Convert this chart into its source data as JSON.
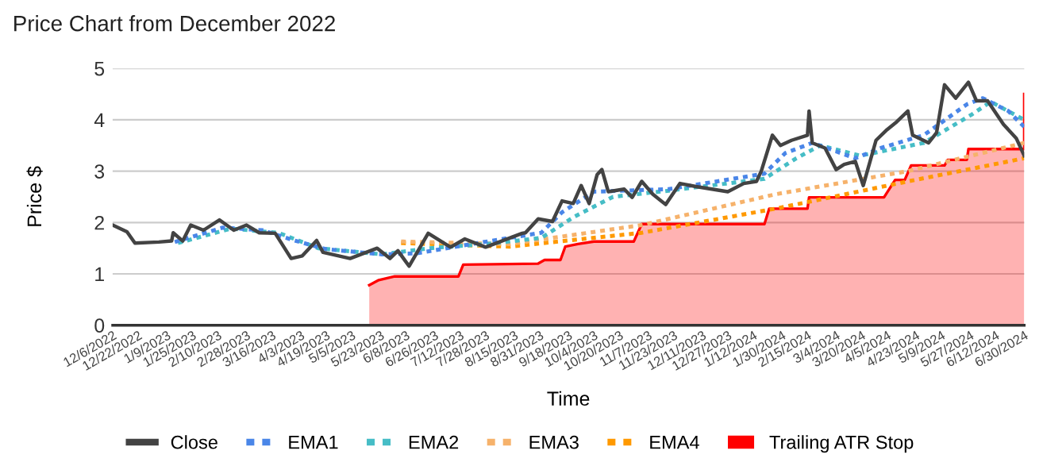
{
  "chart_data": {
    "type": "line",
    "title": "Price Chart from December 2022",
    "xlabel": "Time",
    "ylabel": "Price $",
    "xlim": [
      "2022-12-06",
      "2024-06-30"
    ],
    "ylim": [
      0,
      5
    ],
    "yticks": [
      0,
      1,
      2,
      3,
      4,
      5
    ],
    "xticks": [
      {
        "value": "2022-12-06",
        "label": "12/6/2022"
      },
      {
        "value": "2022-12-22",
        "label": "12/22/2022"
      },
      {
        "value": "2023-01-09",
        "label": "1/9/2023"
      },
      {
        "value": "2023-01-25",
        "label": "1/25/2023"
      },
      {
        "value": "2023-02-10",
        "label": "2/10/2023"
      },
      {
        "value": "2023-02-28",
        "label": "2/28/2023"
      },
      {
        "value": "2023-03-16",
        "label": "3/16/2023"
      },
      {
        "value": "2023-04-03",
        "label": "4/3/2023"
      },
      {
        "value": "2023-04-19",
        "label": "4/19/2023"
      },
      {
        "value": "2023-05-05",
        "label": "5/5/2023"
      },
      {
        "value": "2023-05-23",
        "label": "5/23/2023"
      },
      {
        "value": "2023-06-08",
        "label": "6/8/2023"
      },
      {
        "value": "2023-06-26",
        "label": "6/26/2023"
      },
      {
        "value": "2023-07-12",
        "label": "7/12/2023"
      },
      {
        "value": "2023-07-28",
        "label": "7/28/2023"
      },
      {
        "value": "2023-08-15",
        "label": "8/15/2023"
      },
      {
        "value": "2023-08-31",
        "label": "8/31/2023"
      },
      {
        "value": "2023-09-18",
        "label": "9/18/2023"
      },
      {
        "value": "2023-10-04",
        "label": "10/4/2023"
      },
      {
        "value": "2023-10-20",
        "label": "10/20/2023"
      },
      {
        "value": "2023-11-07",
        "label": "11/7/2023"
      },
      {
        "value": "2023-11-23",
        "label": "11/23/2023"
      },
      {
        "value": "2023-12-11",
        "label": "12/11/2023"
      },
      {
        "value": "2023-12-27",
        "label": "12/27/2023"
      },
      {
        "value": "2024-01-12",
        "label": "1/12/2024"
      },
      {
        "value": "2024-01-30",
        "label": "1/30/2024"
      },
      {
        "value": "2024-02-15",
        "label": "2/15/2024"
      },
      {
        "value": "2024-03-04",
        "label": "3/4/2024"
      },
      {
        "value": "2024-03-20",
        "label": "3/20/2024"
      },
      {
        "value": "2024-04-05",
        "label": "4/5/2024"
      },
      {
        "value": "2024-04-23",
        "label": "4/23/2024"
      },
      {
        "value": "2024-05-09",
        "label": "5/9/2024"
      },
      {
        "value": "2024-05-27",
        "label": "5/27/2024"
      },
      {
        "value": "2024-06-12",
        "label": "6/12/2024"
      },
      {
        "value": "2024-06-30",
        "label": "6/30/2024"
      }
    ],
    "grid": "y",
    "legend": "bottom",
    "series": [
      {
        "name": "Trailing ATR Stop",
        "type": "area",
        "color": "#ff0000",
        "x": [
          "2023-05-16",
          "2023-05-22",
          "2023-06-01",
          "2023-07-11",
          "2023-07-14",
          "2023-08-30",
          "2023-09-03",
          "2023-09-13",
          "2023-09-16",
          "2023-09-24",
          "2023-10-04",
          "2023-10-29",
          "2023-11-03",
          "2024-01-19",
          "2024-01-22",
          "2024-02-15",
          "2024-02-16",
          "2024-04-03",
          "2024-04-10",
          "2024-04-16",
          "2024-04-20",
          "2024-05-11",
          "2024-05-13",
          "2024-05-25",
          "2024-05-26",
          "2024-06-30",
          "2024-06-30"
        ],
        "values": [
          0.78,
          0.88,
          0.95,
          0.95,
          1.18,
          1.2,
          1.27,
          1.27,
          1.53,
          1.58,
          1.63,
          1.63,
          1.97,
          1.97,
          2.27,
          2.27,
          2.49,
          2.49,
          2.83,
          2.83,
          3.11,
          3.11,
          3.22,
          3.22,
          3.43,
          3.43,
          4.5
        ]
      },
      {
        "name": "EMA4",
        "line_style": "dotted",
        "color": "#ff9900",
        "x": [
          "2023-06-05",
          "2023-08-12",
          "2023-11-03",
          "2024-01-26",
          "2024-04-18",
          "2024-06-30"
        ],
        "values": [
          1.6,
          1.53,
          1.8,
          2.27,
          2.8,
          3.25
        ]
      },
      {
        "name": "EMA3",
        "line_style": "dotted",
        "color": "#f6b26b",
        "x": [
          "2023-06-05",
          "2023-08-12",
          "2023-11-03",
          "2024-01-26",
          "2024-04-18",
          "2024-06-30"
        ],
        "values": [
          1.63,
          1.58,
          1.95,
          2.55,
          3.0,
          3.55
        ]
      },
      {
        "name": "EMA2",
        "line_style": "dotted",
        "color": "#46bdc6",
        "x": [
          "2023-01-16",
          "2023-02-18",
          "2023-03-20",
          "2023-04-14",
          "2023-05-24",
          "2023-06-23",
          "2023-07-28",
          "2023-09-01",
          "2023-09-21",
          "2023-10-16",
          "2023-11-20",
          "2024-01-19",
          "2024-02-08",
          "2024-02-23",
          "2024-03-19",
          "2024-04-28",
          "2024-05-28",
          "2024-06-09",
          "2024-06-30"
        ],
        "values": [
          1.6,
          1.88,
          1.8,
          1.5,
          1.38,
          1.5,
          1.58,
          1.7,
          2.1,
          2.5,
          2.62,
          2.85,
          3.25,
          3.5,
          3.3,
          3.55,
          4.1,
          4.35,
          4.0
        ]
      },
      {
        "name": "EMA1",
        "line_style": "dotted",
        "color": "#4a86e8",
        "x": [
          "2023-01-14",
          "2023-02-13",
          "2023-03-10",
          "2023-03-30",
          "2023-04-19",
          "2023-05-24",
          "2023-06-15",
          "2023-07-23",
          "2023-09-01",
          "2023-09-14",
          "2023-10-04",
          "2023-11-20",
          "2024-01-19",
          "2024-02-01",
          "2024-02-18",
          "2024-03-16",
          "2024-04-01",
          "2024-04-28",
          "2024-05-25",
          "2024-06-04",
          "2024-06-20",
          "2024-06-30"
        ],
        "values": [
          1.62,
          1.9,
          1.85,
          1.65,
          1.48,
          1.38,
          1.4,
          1.6,
          1.8,
          2.2,
          2.6,
          2.65,
          2.95,
          3.35,
          3.55,
          3.25,
          3.45,
          3.7,
          4.3,
          4.42,
          4.17,
          3.86
        ]
      },
      {
        "name": "Close",
        "line_style": "solid",
        "color": "#434343",
        "x": [
          "2022-12-06",
          "2022-12-15",
          "2022-12-20",
          "2023-01-04",
          "2023-01-12",
          "2023-01-13",
          "2023-01-19",
          "2023-01-24",
          "2023-02-01",
          "2023-02-11",
          "2023-02-20",
          "2023-02-28",
          "2023-03-08",
          "2023-03-18",
          "2023-03-28",
          "2023-04-04",
          "2023-04-13",
          "2023-04-17",
          "2023-05-04",
          "2023-05-21",
          "2023-05-29",
          "2023-06-03",
          "2023-06-10",
          "2023-06-22",
          "2023-07-06",
          "2023-07-15",
          "2023-07-28",
          "2023-08-20",
          "2023-08-22",
          "2023-08-30",
          "2023-09-08",
          "2023-09-14",
          "2023-09-21",
          "2023-09-26",
          "2023-10-01",
          "2023-10-06",
          "2023-10-09",
          "2023-10-13",
          "2023-10-23",
          "2023-10-28",
          "2023-11-03",
          "2023-11-10",
          "2023-11-18",
          "2023-11-27",
          "2023-12-07",
          "2023-12-17",
          "2023-12-27",
          "2024-01-06",
          "2024-01-14",
          "2024-01-17",
          "2024-01-24",
          "2024-01-29",
          "2024-02-05",
          "2024-02-15",
          "2024-02-16",
          "2024-02-18",
          "2024-02-26",
          "2024-03-04",
          "2024-03-09",
          "2024-03-16",
          "2024-03-21",
          "2024-03-29",
          "2024-04-05",
          "2024-04-11",
          "2024-04-18",
          "2024-04-21",
          "2024-05-01",
          "2024-05-06",
          "2024-05-11",
          "2024-05-18",
          "2024-05-26",
          "2024-05-31",
          "2024-06-07",
          "2024-06-17",
          "2024-06-25",
          "2024-06-30"
        ],
        "values": [
          1.95,
          1.82,
          1.6,
          1.62,
          1.64,
          1.8,
          1.64,
          1.95,
          1.85,
          2.05,
          1.85,
          1.95,
          1.8,
          1.79,
          1.3,
          1.35,
          1.65,
          1.42,
          1.3,
          1.5,
          1.3,
          1.45,
          1.15,
          1.79,
          1.52,
          1.68,
          1.52,
          1.79,
          1.8,
          2.07,
          2.02,
          2.42,
          2.37,
          2.72,
          2.37,
          2.93,
          3.03,
          2.6,
          2.65,
          2.49,
          2.8,
          2.55,
          2.35,
          2.76,
          2.7,
          2.65,
          2.6,
          2.76,
          2.8,
          3.0,
          3.7,
          3.5,
          3.6,
          3.7,
          4.17,
          3.55,
          3.45,
          3.03,
          3.13,
          3.19,
          2.72,
          3.6,
          3.81,
          3.96,
          4.17,
          3.7,
          3.55,
          3.75,
          4.68,
          4.42,
          4.73,
          4.37,
          4.37,
          3.91,
          3.64,
          3.3
        ]
      }
    ]
  }
}
